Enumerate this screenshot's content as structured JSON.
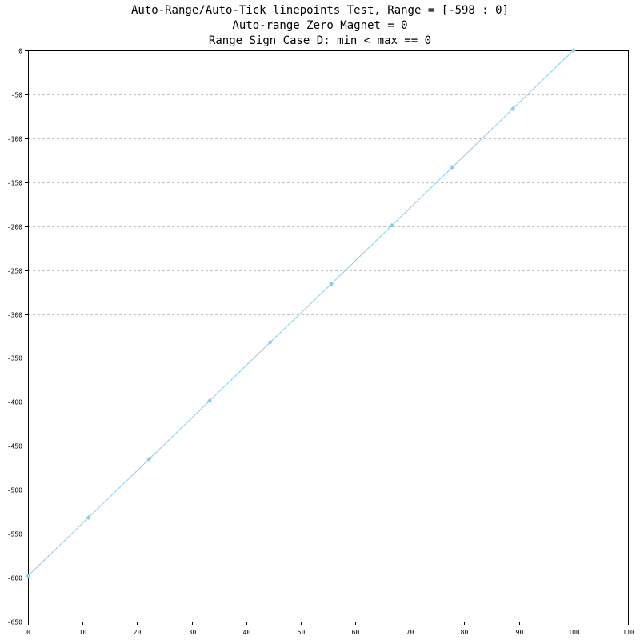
{
  "chart_data": {
    "type": "line",
    "title_lines": [
      "Auto-Range/Auto-Tick linepoints Test, Range = [-598 : 0]",
      "Auto-range Zero Magnet = 0",
      "Range Sign Case D: min < max == 0"
    ],
    "xlabel": "",
    "ylabel": "",
    "xlim": [
      0,
      110
    ],
    "ylim": [
      -650,
      0
    ],
    "x_ticks": [
      0,
      10,
      20,
      30,
      40,
      50,
      60,
      70,
      80,
      90,
      100,
      110
    ],
    "y_ticks": [
      0,
      -50,
      -100,
      -150,
      -200,
      -250,
      -300,
      -350,
      -400,
      -450,
      -500,
      -550,
      -600,
      -650
    ],
    "grid": "horizontal-dashed",
    "series": [
      {
        "color": "#87ceeb",
        "marker": "diamond",
        "x": [
          0,
          11.1,
          22.2,
          33.3,
          44.4,
          55.6,
          66.7,
          77.8,
          88.9,
          100
        ],
        "y": [
          -598,
          -531.6,
          -465.1,
          -398.7,
          -332.2,
          -265.8,
          -199.3,
          -132.9,
          -66.4,
          0
        ]
      }
    ]
  }
}
